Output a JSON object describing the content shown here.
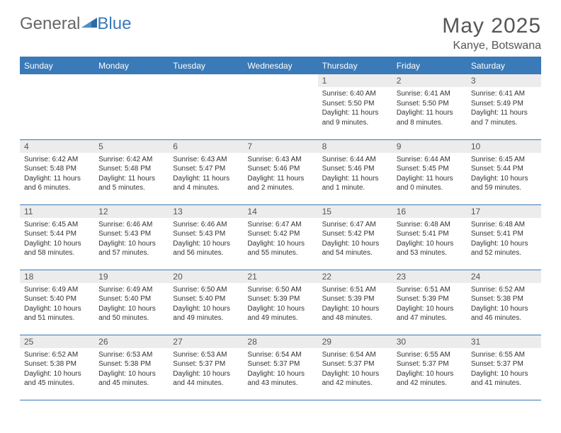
{
  "brand": {
    "general": "General",
    "blue": "Blue"
  },
  "title": "May 2025",
  "location": "Kanye, Botswana",
  "colors": {
    "accent": "#3a7ab8",
    "header_bg": "#3a7ab8",
    "daynum_bg": "#ececec"
  },
  "day_headers": [
    "Sunday",
    "Monday",
    "Tuesday",
    "Wednesday",
    "Thursday",
    "Friday",
    "Saturday"
  ],
  "weeks": [
    [
      {
        "n": "",
        "sr": "",
        "ss": "",
        "dl": ""
      },
      {
        "n": "",
        "sr": "",
        "ss": "",
        "dl": ""
      },
      {
        "n": "",
        "sr": "",
        "ss": "",
        "dl": ""
      },
      {
        "n": "",
        "sr": "",
        "ss": "",
        "dl": ""
      },
      {
        "n": "1",
        "sr": "Sunrise: 6:40 AM",
        "ss": "Sunset: 5:50 PM",
        "dl": "Daylight: 11 hours and 9 minutes."
      },
      {
        "n": "2",
        "sr": "Sunrise: 6:41 AM",
        "ss": "Sunset: 5:50 PM",
        "dl": "Daylight: 11 hours and 8 minutes."
      },
      {
        "n": "3",
        "sr": "Sunrise: 6:41 AM",
        "ss": "Sunset: 5:49 PM",
        "dl": "Daylight: 11 hours and 7 minutes."
      }
    ],
    [
      {
        "n": "4",
        "sr": "Sunrise: 6:42 AM",
        "ss": "Sunset: 5:48 PM",
        "dl": "Daylight: 11 hours and 6 minutes."
      },
      {
        "n": "5",
        "sr": "Sunrise: 6:42 AM",
        "ss": "Sunset: 5:48 PM",
        "dl": "Daylight: 11 hours and 5 minutes."
      },
      {
        "n": "6",
        "sr": "Sunrise: 6:43 AM",
        "ss": "Sunset: 5:47 PM",
        "dl": "Daylight: 11 hours and 4 minutes."
      },
      {
        "n": "7",
        "sr": "Sunrise: 6:43 AM",
        "ss": "Sunset: 5:46 PM",
        "dl": "Daylight: 11 hours and 2 minutes."
      },
      {
        "n": "8",
        "sr": "Sunrise: 6:44 AM",
        "ss": "Sunset: 5:46 PM",
        "dl": "Daylight: 11 hours and 1 minute."
      },
      {
        "n": "9",
        "sr": "Sunrise: 6:44 AM",
        "ss": "Sunset: 5:45 PM",
        "dl": "Daylight: 11 hours and 0 minutes."
      },
      {
        "n": "10",
        "sr": "Sunrise: 6:45 AM",
        "ss": "Sunset: 5:44 PM",
        "dl": "Daylight: 10 hours and 59 minutes."
      }
    ],
    [
      {
        "n": "11",
        "sr": "Sunrise: 6:45 AM",
        "ss": "Sunset: 5:44 PM",
        "dl": "Daylight: 10 hours and 58 minutes."
      },
      {
        "n": "12",
        "sr": "Sunrise: 6:46 AM",
        "ss": "Sunset: 5:43 PM",
        "dl": "Daylight: 10 hours and 57 minutes."
      },
      {
        "n": "13",
        "sr": "Sunrise: 6:46 AM",
        "ss": "Sunset: 5:43 PM",
        "dl": "Daylight: 10 hours and 56 minutes."
      },
      {
        "n": "14",
        "sr": "Sunrise: 6:47 AM",
        "ss": "Sunset: 5:42 PM",
        "dl": "Daylight: 10 hours and 55 minutes."
      },
      {
        "n": "15",
        "sr": "Sunrise: 6:47 AM",
        "ss": "Sunset: 5:42 PM",
        "dl": "Daylight: 10 hours and 54 minutes."
      },
      {
        "n": "16",
        "sr": "Sunrise: 6:48 AM",
        "ss": "Sunset: 5:41 PM",
        "dl": "Daylight: 10 hours and 53 minutes."
      },
      {
        "n": "17",
        "sr": "Sunrise: 6:48 AM",
        "ss": "Sunset: 5:41 PM",
        "dl": "Daylight: 10 hours and 52 minutes."
      }
    ],
    [
      {
        "n": "18",
        "sr": "Sunrise: 6:49 AM",
        "ss": "Sunset: 5:40 PM",
        "dl": "Daylight: 10 hours and 51 minutes."
      },
      {
        "n": "19",
        "sr": "Sunrise: 6:49 AM",
        "ss": "Sunset: 5:40 PM",
        "dl": "Daylight: 10 hours and 50 minutes."
      },
      {
        "n": "20",
        "sr": "Sunrise: 6:50 AM",
        "ss": "Sunset: 5:40 PM",
        "dl": "Daylight: 10 hours and 49 minutes."
      },
      {
        "n": "21",
        "sr": "Sunrise: 6:50 AM",
        "ss": "Sunset: 5:39 PM",
        "dl": "Daylight: 10 hours and 49 minutes."
      },
      {
        "n": "22",
        "sr": "Sunrise: 6:51 AM",
        "ss": "Sunset: 5:39 PM",
        "dl": "Daylight: 10 hours and 48 minutes."
      },
      {
        "n": "23",
        "sr": "Sunrise: 6:51 AM",
        "ss": "Sunset: 5:39 PM",
        "dl": "Daylight: 10 hours and 47 minutes."
      },
      {
        "n": "24",
        "sr": "Sunrise: 6:52 AM",
        "ss": "Sunset: 5:38 PM",
        "dl": "Daylight: 10 hours and 46 minutes."
      }
    ],
    [
      {
        "n": "25",
        "sr": "Sunrise: 6:52 AM",
        "ss": "Sunset: 5:38 PM",
        "dl": "Daylight: 10 hours and 45 minutes."
      },
      {
        "n": "26",
        "sr": "Sunrise: 6:53 AM",
        "ss": "Sunset: 5:38 PM",
        "dl": "Daylight: 10 hours and 45 minutes."
      },
      {
        "n": "27",
        "sr": "Sunrise: 6:53 AM",
        "ss": "Sunset: 5:37 PM",
        "dl": "Daylight: 10 hours and 44 minutes."
      },
      {
        "n": "28",
        "sr": "Sunrise: 6:54 AM",
        "ss": "Sunset: 5:37 PM",
        "dl": "Daylight: 10 hours and 43 minutes."
      },
      {
        "n": "29",
        "sr": "Sunrise: 6:54 AM",
        "ss": "Sunset: 5:37 PM",
        "dl": "Daylight: 10 hours and 42 minutes."
      },
      {
        "n": "30",
        "sr": "Sunrise: 6:55 AM",
        "ss": "Sunset: 5:37 PM",
        "dl": "Daylight: 10 hours and 42 minutes."
      },
      {
        "n": "31",
        "sr": "Sunrise: 6:55 AM",
        "ss": "Sunset: 5:37 PM",
        "dl": "Daylight: 10 hours and 41 minutes."
      }
    ]
  ]
}
